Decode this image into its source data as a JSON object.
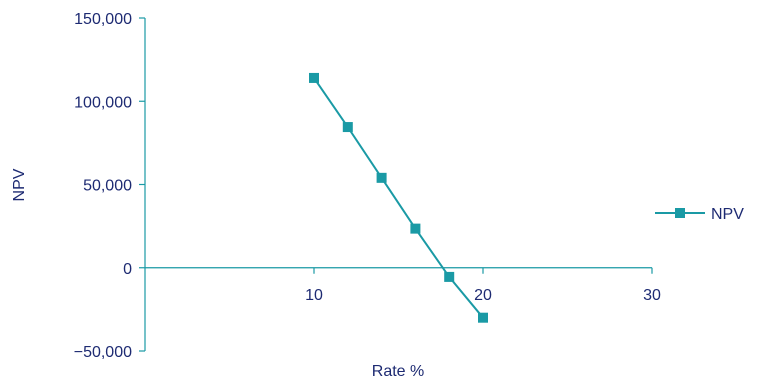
{
  "chart_data": {
    "type": "line",
    "title": "",
    "xlabel": "Rate %",
    "ylabel": "NPV",
    "xlim": [
      0,
      30
    ],
    "ylim": [
      -50000,
      150000
    ],
    "x_ticks": [
      10,
      20,
      30
    ],
    "x_tick_labels": [
      "10",
      "20",
      "30"
    ],
    "y_ticks": [
      -50000,
      0,
      50000,
      100000,
      150000
    ],
    "y_tick_labels": [
      "−50,000",
      "0",
      "50,000",
      "100,000",
      "150,000"
    ],
    "grid": false,
    "legend_position": "right",
    "series": [
      {
        "name": "NPV",
        "marker": "square",
        "color": "#1a9aa5",
        "x": [
          10,
          12,
          14,
          16,
          18,
          20
        ],
        "y": [
          114000,
          84500,
          54000,
          23500,
          -5500,
          -30000
        ]
      }
    ]
  },
  "colors": {
    "axis": "#1a9aa5",
    "text": "#1d2a72",
    "series": "#1a9aa5"
  }
}
